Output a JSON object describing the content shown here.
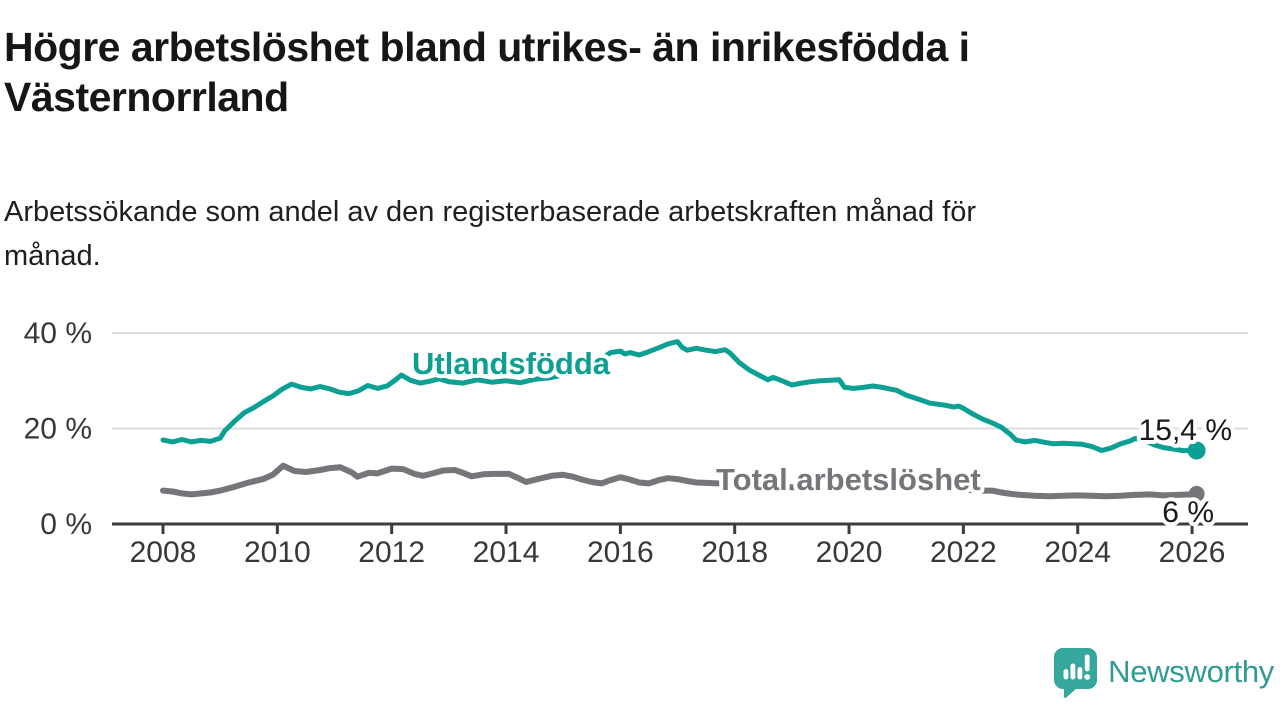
{
  "header": {
    "title_lines": [
      "Högre arbetslöshet bland utrikes- än inrikesfödda i",
      "Västernorrland"
    ],
    "subtitle_lines": [
      "Arbetssökande som andel av den registerbaserade arbetskraften månad för",
      "månad."
    ]
  },
  "footer": {
    "logo_icon": "newsworthy-speech-bubble-chart-icon",
    "logo_text": "Newsworthy",
    "logo_icon_color": "#35a79c",
    "logo_text_color": "#2f9c93"
  },
  "colors": {
    "background": "#ffffff",
    "axis": "#3c3c3c",
    "tick_text": "#38383a",
    "gridline": "#dbdbdb",
    "annotation_text": "#1a1a1a",
    "series_foreign_born": "#0ca094",
    "series_total": "#75757a"
  },
  "chart_data": {
    "type": "line",
    "title": "Högre arbetslöshet bland utrikes- än inrikesfödda i Västernorrland",
    "subtitle": "Arbetssökande som andel av den registerbaserade arbetskraften månad för månad.",
    "xlabel": "",
    "ylabel": "",
    "ylim": [
      0,
      43
    ],
    "x_range_years": [
      2008,
      2026.1
    ],
    "grid": "horizontal",
    "legend_position": "inline-labels",
    "y_ticks": [
      {
        "value": 0,
        "label": "0 %"
      },
      {
        "value": 20,
        "label": "20 %"
      },
      {
        "value": 40,
        "label": "40 %"
      }
    ],
    "x_ticks": [
      {
        "value": 2008,
        "label": "2008"
      },
      {
        "value": 2010,
        "label": "2010"
      },
      {
        "value": 2012,
        "label": "2012"
      },
      {
        "value": 2014,
        "label": "2014"
      },
      {
        "value": 2016,
        "label": "2016"
      },
      {
        "value": 2018,
        "label": "2018"
      },
      {
        "value": 2020,
        "label": "2020"
      },
      {
        "value": 2022,
        "label": "2022"
      },
      {
        "value": 2024,
        "label": "2024"
      },
      {
        "value": 2026,
        "label": "2026"
      }
    ],
    "series": [
      {
        "name": "Utlandsfödda",
        "color": "#0ca094",
        "end_label": "15,4 %",
        "end_value": 15.4,
        "points": [
          [
            2008.0,
            17.6
          ],
          [
            2008.17,
            17.2
          ],
          [
            2008.33,
            17.7
          ],
          [
            2008.5,
            17.2
          ],
          [
            2008.67,
            17.5
          ],
          [
            2008.83,
            17.3
          ],
          [
            2009.0,
            18.0
          ],
          [
            2009.08,
            19.5
          ],
          [
            2009.25,
            21.5
          ],
          [
            2009.42,
            23.3
          ],
          [
            2009.58,
            24.3
          ],
          [
            2009.75,
            25.6
          ],
          [
            2009.92,
            26.8
          ],
          [
            2010.08,
            28.2
          ],
          [
            2010.25,
            29.3
          ],
          [
            2010.42,
            28.6
          ],
          [
            2010.58,
            28.3
          ],
          [
            2010.75,
            28.8
          ],
          [
            2010.92,
            28.3
          ],
          [
            2011.08,
            27.6
          ],
          [
            2011.25,
            27.3
          ],
          [
            2011.42,
            27.9
          ],
          [
            2011.58,
            29.0
          ],
          [
            2011.75,
            28.4
          ],
          [
            2011.92,
            28.9
          ],
          [
            2012.08,
            30.3
          ],
          [
            2012.17,
            31.2
          ],
          [
            2012.33,
            30.1
          ],
          [
            2012.5,
            29.5
          ],
          [
            2012.67,
            29.9
          ],
          [
            2012.83,
            30.4
          ],
          [
            2013.0,
            29.8
          ],
          [
            2013.25,
            29.5
          ],
          [
            2013.5,
            30.2
          ],
          [
            2013.75,
            29.7
          ],
          [
            2014.0,
            30.0
          ],
          [
            2014.25,
            29.6
          ],
          [
            2014.5,
            30.3
          ],
          [
            2014.75,
            30.6
          ],
          [
            2015.0,
            31.2
          ],
          [
            2015.25,
            32.0
          ],
          [
            2015.5,
            33.2
          ],
          [
            2015.67,
            34.6
          ],
          [
            2015.83,
            35.9
          ],
          [
            2016.0,
            36.2
          ],
          [
            2016.08,
            35.6
          ],
          [
            2016.17,
            35.9
          ],
          [
            2016.33,
            35.4
          ],
          [
            2016.5,
            36.1
          ],
          [
            2016.67,
            36.9
          ],
          [
            2016.83,
            37.7
          ],
          [
            2017.0,
            38.2
          ],
          [
            2017.08,
            37.0
          ],
          [
            2017.17,
            36.4
          ],
          [
            2017.33,
            36.8
          ],
          [
            2017.5,
            36.4
          ],
          [
            2017.67,
            36.1
          ],
          [
            2017.83,
            36.5
          ],
          [
            2017.92,
            35.8
          ],
          [
            2018.08,
            33.8
          ],
          [
            2018.25,
            32.3
          ],
          [
            2018.42,
            31.2
          ],
          [
            2018.58,
            30.2
          ],
          [
            2018.67,
            30.7
          ],
          [
            2018.83,
            30.0
          ],
          [
            2019.0,
            29.1
          ],
          [
            2019.17,
            29.5
          ],
          [
            2019.33,
            29.8
          ],
          [
            2019.5,
            30.0
          ],
          [
            2019.67,
            30.1
          ],
          [
            2019.83,
            30.2
          ],
          [
            2019.92,
            28.6
          ],
          [
            2020.08,
            28.4
          ],
          [
            2020.25,
            28.6
          ],
          [
            2020.42,
            28.9
          ],
          [
            2020.58,
            28.6
          ],
          [
            2020.83,
            28.0
          ],
          [
            2021.0,
            27.0
          ],
          [
            2021.25,
            26.0
          ],
          [
            2021.42,
            25.3
          ],
          [
            2021.67,
            24.9
          ],
          [
            2021.83,
            24.5
          ],
          [
            2021.92,
            24.7
          ],
          [
            2022.0,
            24.2
          ],
          [
            2022.17,
            23.0
          ],
          [
            2022.33,
            22.0
          ],
          [
            2022.5,
            21.2
          ],
          [
            2022.67,
            20.2
          ],
          [
            2022.83,
            18.7
          ],
          [
            2022.92,
            17.6
          ],
          [
            2023.08,
            17.2
          ],
          [
            2023.25,
            17.5
          ],
          [
            2023.42,
            17.1
          ],
          [
            2023.58,
            16.8
          ],
          [
            2023.75,
            16.9
          ],
          [
            2023.92,
            16.8
          ],
          [
            2024.08,
            16.7
          ],
          [
            2024.25,
            16.2
          ],
          [
            2024.42,
            15.4
          ],
          [
            2024.58,
            15.9
          ],
          [
            2024.75,
            16.8
          ],
          [
            2024.92,
            17.4
          ],
          [
            2025.0,
            17.9
          ],
          [
            2025.17,
            17.5
          ],
          [
            2025.33,
            16.6
          ],
          [
            2025.5,
            16.0
          ],
          [
            2025.67,
            15.7
          ],
          [
            2025.83,
            15.4
          ],
          [
            2026.0,
            15.3
          ],
          [
            2026.08,
            15.4
          ]
        ]
      },
      {
        "name": "Total arbetslöshet",
        "color": "#75757a",
        "end_label": "6 %",
        "end_value": 6.3,
        "points": [
          [
            2008.0,
            7.0
          ],
          [
            2008.17,
            6.8
          ],
          [
            2008.33,
            6.4
          ],
          [
            2008.5,
            6.2
          ],
          [
            2008.67,
            6.4
          ],
          [
            2008.83,
            6.6
          ],
          [
            2009.0,
            7.0
          ],
          [
            2009.25,
            7.8
          ],
          [
            2009.5,
            8.7
          ],
          [
            2009.75,
            9.4
          ],
          [
            2009.92,
            10.3
          ],
          [
            2010.1,
            12.2
          ],
          [
            2010.3,
            11.1
          ],
          [
            2010.5,
            10.9
          ],
          [
            2010.75,
            11.3
          ],
          [
            2010.92,
            11.7
          ],
          [
            2011.1,
            11.9
          ],
          [
            2011.3,
            10.8
          ],
          [
            2011.4,
            9.9
          ],
          [
            2011.5,
            10.3
          ],
          [
            2011.6,
            10.7
          ],
          [
            2011.75,
            10.6
          ],
          [
            2011.9,
            11.2
          ],
          [
            2012.0,
            11.6
          ],
          [
            2012.2,
            11.5
          ],
          [
            2012.4,
            10.5
          ],
          [
            2012.55,
            10.1
          ],
          [
            2012.75,
            10.7
          ],
          [
            2012.9,
            11.2
          ],
          [
            2013.1,
            11.3
          ],
          [
            2013.25,
            10.7
          ],
          [
            2013.4,
            10.0
          ],
          [
            2013.6,
            10.4
          ],
          [
            2013.8,
            10.5
          ],
          [
            2014.05,
            10.5
          ],
          [
            2014.2,
            9.7
          ],
          [
            2014.35,
            8.8
          ],
          [
            2014.55,
            9.4
          ],
          [
            2014.8,
            10.1
          ],
          [
            2015.0,
            10.3
          ],
          [
            2015.17,
            9.9
          ],
          [
            2015.33,
            9.3
          ],
          [
            2015.5,
            8.8
          ],
          [
            2015.67,
            8.5
          ],
          [
            2015.83,
            9.2
          ],
          [
            2016.0,
            9.8
          ],
          [
            2016.17,
            9.3
          ],
          [
            2016.33,
            8.7
          ],
          [
            2016.5,
            8.5
          ],
          [
            2016.67,
            9.2
          ],
          [
            2016.83,
            9.6
          ],
          [
            2017.0,
            9.4
          ],
          [
            2017.17,
            9.0
          ],
          [
            2017.33,
            8.7
          ],
          [
            2017.5,
            8.6
          ],
          [
            2017.7,
            8.5
          ],
          [
            2018.0,
            8.3
          ],
          [
            2018.5,
            7.9
          ],
          [
            2019.0,
            7.7
          ],
          [
            2019.5,
            7.5
          ],
          [
            2020.0,
            7.9
          ],
          [
            2020.33,
            9.2
          ],
          [
            2020.67,
            8.9
          ],
          [
            2021.0,
            8.4
          ],
          [
            2021.5,
            7.7
          ],
          [
            2022.0,
            7.2
          ],
          [
            2022.33,
            7.0
          ],
          [
            2022.5,
            7.0
          ],
          [
            2022.67,
            6.6
          ],
          [
            2022.83,
            6.3
          ],
          [
            2023.0,
            6.1
          ],
          [
            2023.25,
            5.9
          ],
          [
            2023.5,
            5.8
          ],
          [
            2023.75,
            5.9
          ],
          [
            2024.0,
            6.0
          ],
          [
            2024.25,
            5.9
          ],
          [
            2024.5,
            5.8
          ],
          [
            2024.75,
            5.9
          ],
          [
            2025.0,
            6.1
          ],
          [
            2025.25,
            6.2
          ],
          [
            2025.5,
            6.0
          ],
          [
            2025.75,
            6.1
          ],
          [
            2026.0,
            6.2
          ],
          [
            2026.08,
            6.3
          ]
        ]
      }
    ]
  }
}
